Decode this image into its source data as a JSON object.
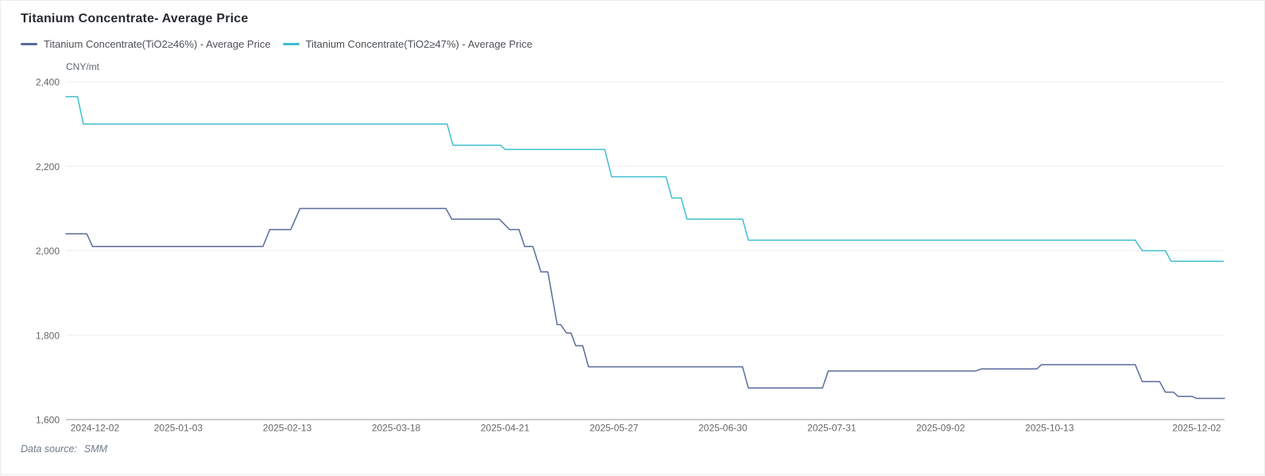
{
  "header": {
    "title": "Titanium Concentrate- Average Price"
  },
  "legend": {
    "items": [
      {
        "label": "Titanium Concentrate(TiO2≥46%) - Average Price",
        "color": "#5a6b9c"
      },
      {
        "label": "Titanium Concentrate(TiO2≥47%) - Average Price",
        "color": "#3fbfce"
      }
    ]
  },
  "footer": {
    "data_source_label": "Data source:",
    "data_source_value": "SMM"
  },
  "chart_data": {
    "type": "line",
    "title": "Titanium Concentrate- Average Price",
    "unit_label": "CNY/mt",
    "legend_position": "top-left",
    "grid": true,
    "background": "#ffffff",
    "gridline_color": "#ededed",
    "axis_line_color": "#999999",
    "tick_label_color": "#666666",
    "ylim": [
      1600,
      2400
    ],
    "yticks": [
      {
        "value": 2400,
        "label": "2,400"
      },
      {
        "value": 2200,
        "label": "2,200"
      },
      {
        "value": 2000,
        "label": "2,000"
      },
      {
        "value": 1800,
        "label": "1,800"
      },
      {
        "value": 1600,
        "label": "1,600"
      }
    ],
    "x_axis_note": "trading-day category axis; point x given as fraction 0-1 of plot width",
    "xticks": [
      {
        "t": 0.025,
        "label": "2024-12-02"
      },
      {
        "t": 0.097,
        "label": "2025-01-03"
      },
      {
        "t": 0.191,
        "label": "2025-02-13"
      },
      {
        "t": 0.285,
        "label": "2025-03-18"
      },
      {
        "t": 0.379,
        "label": "2025-04-21"
      },
      {
        "t": 0.473,
        "label": "2025-05-27"
      },
      {
        "t": 0.567,
        "label": "2025-06-30"
      },
      {
        "t": 0.661,
        "label": "2025-07-31"
      },
      {
        "t": 0.755,
        "label": "2025-09-02"
      },
      {
        "t": 0.849,
        "label": "2025-10-13"
      },
      {
        "t": 0.976,
        "label": "2025-12-02"
      }
    ],
    "series": [
      {
        "name": "Titanium Concentrate(TiO2≥46%) - Average Price",
        "color": "#5a6b9c",
        "unit": "CNY/mt",
        "points": [
          [
            0.0,
            2040
          ],
          [
            0.018,
            2040
          ],
          [
            0.023,
            2010
          ],
          [
            0.17,
            2010
          ],
          [
            0.176,
            2050
          ],
          [
            0.194,
            2050
          ],
          [
            0.202,
            2100
          ],
          [
            0.328,
            2100
          ],
          [
            0.333,
            2075
          ],
          [
            0.374,
            2075
          ],
          [
            0.383,
            2050
          ],
          [
            0.391,
            2050
          ],
          [
            0.396,
            2010
          ],
          [
            0.403,
            2010
          ],
          [
            0.41,
            1950
          ],
          [
            0.416,
            1950
          ],
          [
            0.424,
            1825
          ],
          [
            0.427,
            1825
          ],
          [
            0.432,
            1805
          ],
          [
            0.436,
            1805
          ],
          [
            0.44,
            1775
          ],
          [
            0.446,
            1775
          ],
          [
            0.451,
            1725
          ],
          [
            0.584,
            1725
          ],
          [
            0.589,
            1675
          ],
          [
            0.653,
            1675
          ],
          [
            0.658,
            1715
          ],
          [
            0.785,
            1715
          ],
          [
            0.79,
            1720
          ],
          [
            0.838,
            1720
          ],
          [
            0.842,
            1730
          ],
          [
            0.923,
            1730
          ],
          [
            0.929,
            1690
          ],
          [
            0.944,
            1690
          ],
          [
            0.949,
            1665
          ],
          [
            0.956,
            1665
          ],
          [
            0.96,
            1655
          ],
          [
            0.972,
            1655
          ],
          [
            0.976,
            1650
          ],
          [
            1.0,
            1650
          ]
        ]
      },
      {
        "name": "Titanium Concentrate(TiO2≥47%) - Average Price",
        "color": "#3fbfce",
        "unit": "CNY/mt",
        "points": [
          [
            0.0,
            2365
          ],
          [
            0.01,
            2365
          ],
          [
            0.015,
            2300
          ],
          [
            0.329,
            2300
          ],
          [
            0.334,
            2250
          ],
          [
            0.375,
            2250
          ],
          [
            0.379,
            2240
          ],
          [
            0.465,
            2240
          ],
          [
            0.471,
            2175
          ],
          [
            0.518,
            2175
          ],
          [
            0.523,
            2125
          ],
          [
            0.531,
            2125
          ],
          [
            0.536,
            2075
          ],
          [
            0.584,
            2075
          ],
          [
            0.589,
            2025
          ],
          [
            0.923,
            2025
          ],
          [
            0.929,
            2000
          ],
          [
            0.949,
            2000
          ],
          [
            0.954,
            1975
          ],
          [
            0.999,
            1975
          ]
        ]
      }
    ]
  }
}
